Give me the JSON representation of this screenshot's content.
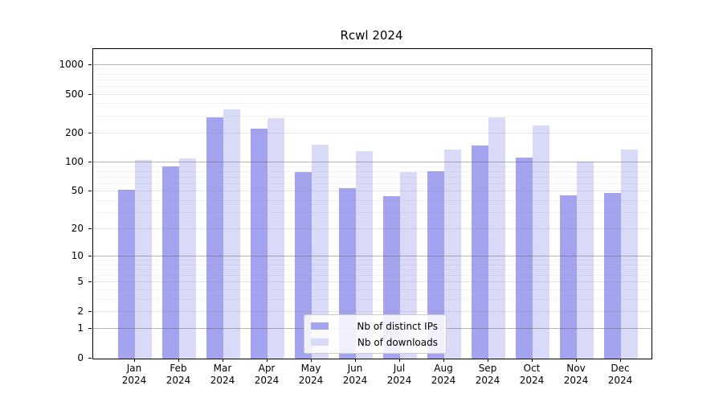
{
  "chart_data": {
    "type": "bar",
    "title": "Rcwl 2024",
    "categories": [
      "Jan 2024",
      "Feb 2024",
      "Mar 2024",
      "Apr 2024",
      "May 2024",
      "Jun 2024",
      "Jul 2024",
      "Aug 2024",
      "Sep 2024",
      "Oct 2024",
      "Nov 2024",
      "Dec 2024"
    ],
    "series": [
      {
        "name": "Nb of distinct IPs",
        "color": "#a3a3f0",
        "values": [
          52,
          92,
          290,
          222,
          80,
          54,
          45,
          82,
          150,
          112,
          46,
          48
        ]
      },
      {
        "name": "Nb of downloads",
        "color": "#d9d9f8",
        "values": [
          107,
          110,
          350,
          285,
          153,
          130,
          80,
          137,
          290,
          240,
          103,
          136
        ]
      }
    ],
    "yscale": "log1p",
    "ylim": [
      0,
      1460
    ],
    "yticks": [
      0,
      1,
      2,
      5,
      10,
      20,
      50,
      100,
      200,
      500,
      1000
    ],
    "minor_gridlines": [
      3,
      4,
      6,
      7,
      8,
      9,
      30,
      40,
      60,
      70,
      80,
      90,
      300,
      400,
      600,
      700,
      800,
      900
    ],
    "major_gridlines": [
      1,
      10,
      100,
      1000
    ],
    "grid": true,
    "legend_position": "lower center",
    "xlabel": "",
    "ylabel": ""
  }
}
